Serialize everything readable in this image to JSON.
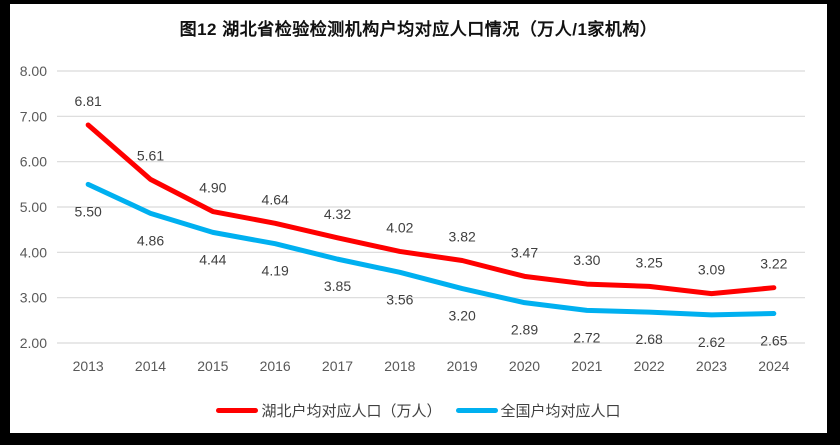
{
  "chart_data": {
    "type": "line",
    "title": "图12 湖北省检验检测机构户均对应人口情况（万人/1家机构）",
    "categories": [
      "2013",
      "2014",
      "2015",
      "2016",
      "2017",
      "2018",
      "2019",
      "2020",
      "2021",
      "2022",
      "2023",
      "2024"
    ],
    "series": [
      {
        "id": "hubei",
        "name": "湖北户均对应人口（万人）",
        "color": "#FF0000",
        "label_position": "above",
        "values": [
          6.81,
          5.61,
          4.9,
          4.64,
          4.32,
          4.02,
          3.82,
          3.47,
          3.3,
          3.25,
          3.09,
          3.22
        ]
      },
      {
        "id": "national",
        "name": "全国户均对应人口",
        "color": "#00B0F0",
        "label_position": "below",
        "values": [
          5.5,
          4.86,
          4.44,
          4.19,
          3.85,
          3.56,
          3.2,
          2.89,
          2.72,
          2.68,
          2.62,
          2.65
        ]
      }
    ],
    "y_axis": {
      "min": 2,
      "max": 8,
      "step": 1,
      "ticks": [
        "2.00",
        "3.00",
        "4.00",
        "5.00",
        "6.00",
        "7.00",
        "8.00"
      ]
    },
    "xlabel": "",
    "ylabel": "",
    "grid": true,
    "legend_position": "bottom",
    "colors": {
      "gridline": "#d9d9d9",
      "axis_label": "#595959",
      "data_label": "#404040",
      "frame": "#000000",
      "background": "#ffffff"
    }
  }
}
